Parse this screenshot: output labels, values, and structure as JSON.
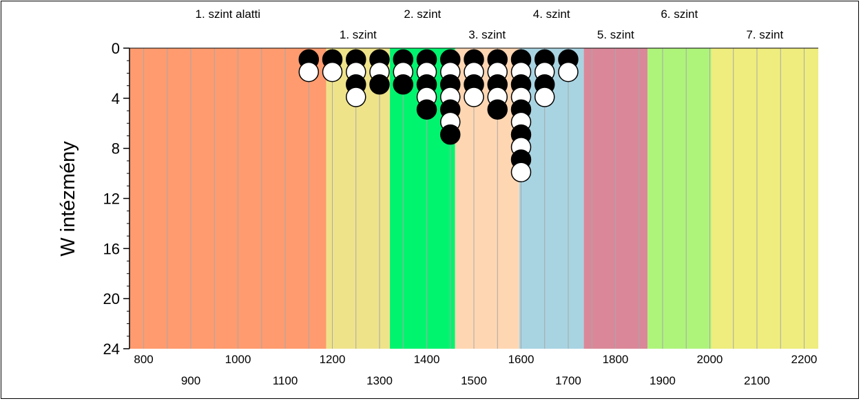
{
  "chart_data": {
    "type": "scatter",
    "ylabel": "W intézmény",
    "xlim": [
      770,
      2230
    ],
    "ylim": [
      0,
      24
    ],
    "y_inverted": true,
    "x_ticks_top_row": [
      "800",
      "1000",
      "1200",
      "1400",
      "1600",
      "1800",
      "2000",
      "2200"
    ],
    "x_ticks_bottom_row": [
      "900",
      "1100",
      "1300",
      "1500",
      "1700",
      "1900",
      "2100"
    ],
    "y_ticks": [
      "0",
      "4",
      "8",
      "12",
      "16",
      "20",
      "24"
    ],
    "grid": "vertical",
    "bands": [
      {
        "label": "1. szint alatti",
        "x0": 770,
        "x1": 1187,
        "color": "#ff9b6e",
        "label_row": 1
      },
      {
        "label": "1. szint",
        "x0": 1187,
        "x1": 1322,
        "color": "#efe38a",
        "label_row": 2
      },
      {
        "label": "2. szint",
        "x0": 1322,
        "x1": 1460,
        "color": "#00f46e",
        "label_row": 1
      },
      {
        "label": "3. szint",
        "x0": 1460,
        "x1": 1596,
        "color": "#ffd6b2",
        "label_row": 2
      },
      {
        "label": "4. szint",
        "x0": 1596,
        "x1": 1733,
        "color": "#a8d4e2",
        "label_row": 1
      },
      {
        "label": "5. szint",
        "x0": 1733,
        "x1": 1868,
        "color": "#da8899",
        "label_row": 2
      },
      {
        "label": "6. szint",
        "x0": 1868,
        "x1": 2003,
        "color": "#aef47b",
        "label_row": 1
      },
      {
        "label": "7. szint",
        "x0": 2003,
        "x1": 2230,
        "color": "#efed7d",
        "label_row": 2
      }
    ],
    "columns": [
      {
        "x": 1150,
        "count": 2
      },
      {
        "x": 1200,
        "count": 2
      },
      {
        "x": 1250,
        "count": 4
      },
      {
        "x": 1300,
        "count": 3
      },
      {
        "x": 1350,
        "count": 3
      },
      {
        "x": 1400,
        "count": 5
      },
      {
        "x": 1450,
        "count": 7
      },
      {
        "x": 1500,
        "count": 4
      },
      {
        "x": 1550,
        "count": 5
      },
      {
        "x": 1600,
        "count": 10
      },
      {
        "x": 1650,
        "count": 4
      },
      {
        "x": 1700,
        "count": 2
      }
    ],
    "marker_colors": {
      "odd": "#000000",
      "even": "#ffffff"
    }
  }
}
